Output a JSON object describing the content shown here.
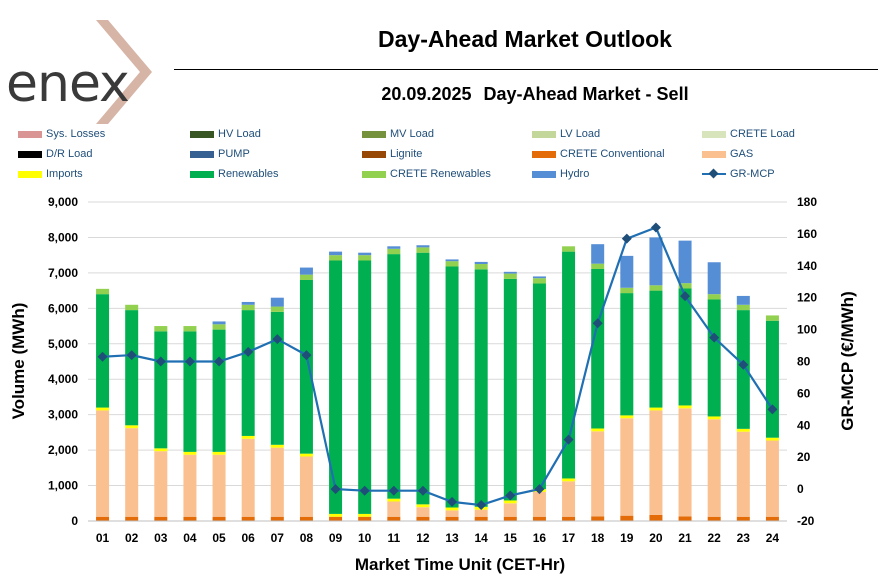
{
  "header": {
    "brand": "enex",
    "title": "Day-Ahead Market Outlook",
    "date": "20.09.2025",
    "market": "Day-Ahead Market - Sell"
  },
  "chart_data": {
    "type": "bar",
    "title": "Day-Ahead Market Outlook",
    "subtitle": "20.09.2025  Day-Ahead Market - Sell",
    "xlabel": "Market Time Unit (CET-Hr)",
    "ylabel": "Volume (MWh)",
    "y2label": "GR-MCP (€/MWh)",
    "ylim": [
      0,
      9000
    ],
    "yticks": [
      0,
      1000,
      2000,
      3000,
      4000,
      5000,
      6000,
      7000,
      8000,
      9000
    ],
    "ytick_labels": [
      "0",
      "1,000",
      "2,000",
      "3,000",
      "4,000",
      "5,000",
      "6,000",
      "7,000",
      "8,000",
      "9,000"
    ],
    "y2lim": [
      -20,
      180
    ],
    "y2ticks": [
      -20,
      0,
      20,
      40,
      60,
      80,
      100,
      120,
      140,
      160,
      180
    ],
    "ytick2_labels": [
      "-20",
      "0",
      "20",
      "40",
      "60",
      "80",
      "100",
      "120",
      "140",
      "160",
      "180"
    ],
    "categories": [
      "01",
      "02",
      "03",
      "04",
      "05",
      "06",
      "07",
      "08",
      "09",
      "10",
      "11",
      "12",
      "13",
      "14",
      "15",
      "16",
      "17",
      "18",
      "19",
      "20",
      "21",
      "22",
      "23",
      "24"
    ],
    "legend": [
      {
        "name": "Sys. Losses",
        "color": "#d99594",
        "kind": "bar"
      },
      {
        "name": "HV Load",
        "color": "#375623",
        "kind": "bar"
      },
      {
        "name": "MV Load",
        "color": "#76923c",
        "kind": "bar"
      },
      {
        "name": "LV Load",
        "color": "#c4d79b",
        "kind": "bar"
      },
      {
        "name": "CRETE Load",
        "color": "#d8e4bc",
        "kind": "bar"
      },
      {
        "name": "D/R Load",
        "color": "#000000",
        "kind": "bar"
      },
      {
        "name": "PUMP",
        "color": "#366092",
        "kind": "bar"
      },
      {
        "name": "Lignite",
        "color": "#974706",
        "kind": "bar"
      },
      {
        "name": "CRETE Conventional",
        "color": "#e36c09",
        "kind": "bar"
      },
      {
        "name": "GAS",
        "color": "#fac090",
        "kind": "bar"
      },
      {
        "name": "Imports",
        "color": "#ffff00",
        "kind": "bar"
      },
      {
        "name": "Renewables",
        "color": "#00b050",
        "kind": "bar"
      },
      {
        "name": "CRETE Renewables",
        "color": "#92d050",
        "kind": "bar"
      },
      {
        "name": "Hydro",
        "color": "#558ed5",
        "kind": "bar"
      },
      {
        "name": "GR-MCP",
        "color": "#1f6fb2",
        "kind": "line"
      }
    ],
    "series": [
      {
        "name": "CRETE Conventional",
        "color": "#e36c09",
        "values": [
          120,
          120,
          120,
          120,
          120,
          120,
          120,
          120,
          120,
          120,
          120,
          120,
          120,
          120,
          120,
          120,
          120,
          130,
          150,
          170,
          130,
          120,
          120,
          120
        ]
      },
      {
        "name": "GAS",
        "color": "#fac090",
        "values": [
          3000,
          2500,
          1850,
          1750,
          1750,
          2200,
          1950,
          1700,
          0,
          0,
          430,
          270,
          180,
          200,
          380,
          700,
          1000,
          2400,
          2750,
          2950,
          3050,
          2750,
          2400,
          2150
        ]
      },
      {
        "name": "Imports",
        "color": "#ffff00",
        "values": [
          80,
          80,
          80,
          80,
          80,
          80,
          80,
          80,
          80,
          80,
          80,
          80,
          80,
          80,
          80,
          80,
          80,
          80,
          80,
          80,
          80,
          80,
          80,
          80
        ]
      },
      {
        "name": "Renewables",
        "color": "#00b050",
        "values": [
          3200,
          3250,
          3300,
          3400,
          3450,
          3550,
          3750,
          4900,
          7150,
          7150,
          6900,
          7100,
          6800,
          6700,
          6250,
          5800,
          6400,
          4500,
          3450,
          3300,
          3300,
          3300,
          3350,
          3300
        ]
      },
      {
        "name": "CRETE Renewables",
        "color": "#92d050",
        "values": [
          150,
          150,
          150,
          150,
          150,
          150,
          150,
          150,
          150,
          150,
          150,
          150,
          150,
          150,
          150,
          150,
          150,
          150,
          150,
          150,
          150,
          150,
          150,
          150
        ]
      },
      {
        "name": "Hydro",
        "color": "#558ed5",
        "values": [
          0,
          0,
          0,
          0,
          80,
          80,
          250,
          200,
          100,
          70,
          70,
          60,
          50,
          60,
          50,
          50,
          0,
          550,
          900,
          1350,
          1200,
          900,
          250,
          0
        ]
      }
    ],
    "line": {
      "name": "GR-MCP",
      "color": "#1f6fb2",
      "marker_color": "#1f4e79",
      "axis": "right",
      "values": [
        83,
        84,
        80,
        80,
        80,
        86,
        94,
        84,
        0,
        -1,
        -1,
        -1,
        -8,
        -10,
        -4,
        0,
        31,
        104,
        157,
        164,
        121,
        95,
        78,
        50
      ]
    }
  }
}
